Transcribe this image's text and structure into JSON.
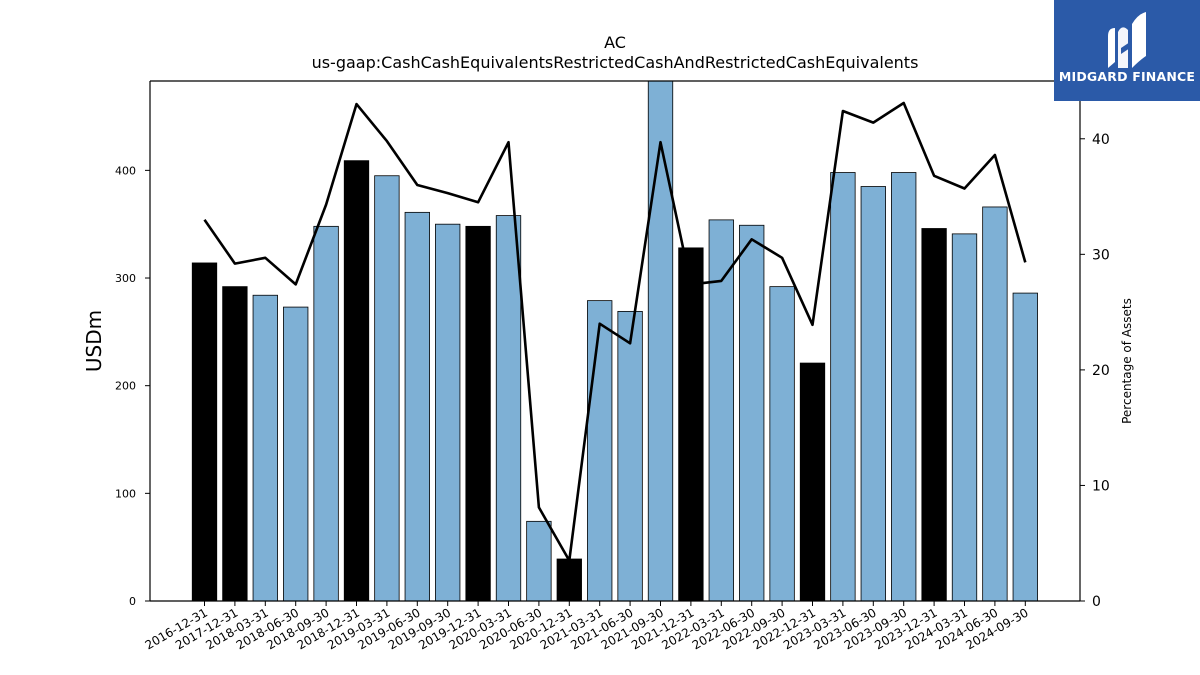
{
  "chart_data": {
    "type": "bar",
    "title": "AC",
    "subtitle": "us-gaap:CashCashEquivalentsRestrictedCashAndRestrictedCashEquivalents",
    "ylabel": "USDm",
    "y2label": "Percentage of Assets",
    "ylim": [
      0,
      483
    ],
    "y2lim": [
      0,
      45
    ],
    "yticks": [
      0,
      100,
      200,
      300,
      400
    ],
    "y2ticks": [
      0,
      10,
      20,
      30,
      40
    ],
    "categories": [
      "2016-12-31",
      "2017-12-31",
      "2018-03-31",
      "2018-06-30",
      "2018-09-30",
      "2018-12-31",
      "2019-03-31",
      "2019-06-30",
      "2019-09-30",
      "2019-12-31",
      "2020-03-31",
      "2020-06-30",
      "2020-12-31",
      "2021-03-31",
      "2021-06-30",
      "2021-09-30",
      "2021-12-31",
      "2022-03-31",
      "2022-06-30",
      "2022-09-30",
      "2022-12-31",
      "2023-03-31",
      "2023-06-30",
      "2023-09-30",
      "2023-12-31",
      "2024-03-31",
      "2024-06-30",
      "2024-09-30"
    ],
    "series": [
      {
        "type": "bar",
        "values": [
          314,
          292,
          284,
          273,
          348,
          409,
          395,
          361,
          350,
          348,
          358,
          74,
          39,
          279,
          269,
          483,
          328,
          354,
          349,
          292,
          221,
          398,
          385,
          398,
          346,
          341,
          366,
          286
        ],
        "year_end": [
          true,
          true,
          false,
          false,
          false,
          true,
          false,
          false,
          false,
          true,
          false,
          false,
          true,
          false,
          false,
          false,
          true,
          false,
          false,
          false,
          true,
          false,
          false,
          false,
          true,
          false,
          false,
          false
        ]
      },
      {
        "type": "line",
        "axis": "right",
        "values": [
          33.0,
          29.2,
          29.7,
          27.4,
          34.3,
          43.0,
          39.8,
          36.0,
          35.3,
          34.5,
          39.7,
          8.1,
          3.5,
          24.0,
          22.3,
          39.7,
          27.4,
          27.7,
          31.3,
          29.7,
          23.9,
          42.4,
          41.4,
          43.1,
          36.8,
          35.7,
          38.6,
          29.3
        ]
      }
    ],
    "colors": {
      "bar": "#7eb0d5",
      "bar_year_end": "#000000",
      "line": "#000000"
    },
    "grid": false
  },
  "logo": {
    "text": "MIDGARD FINANCE",
    "background": "#2b5aa8",
    "icon": "midgard-logo-icon"
  }
}
